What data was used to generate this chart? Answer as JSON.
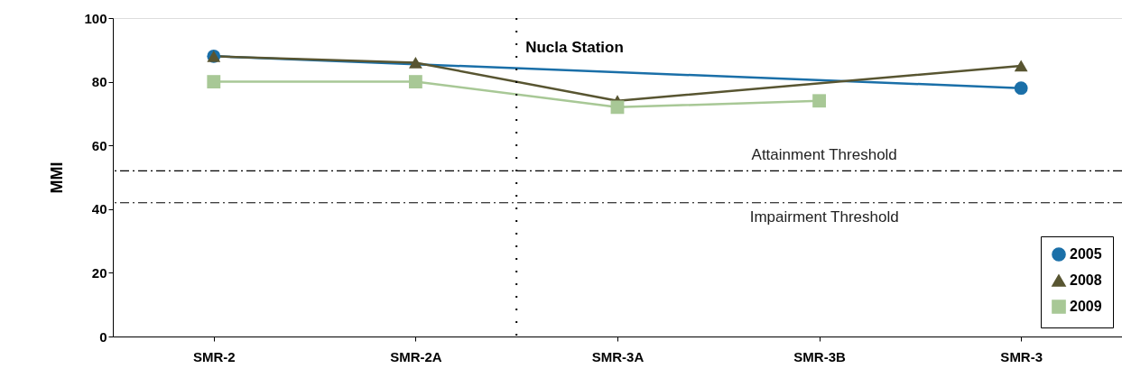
{
  "chart_data": {
    "type": "line",
    "ylabel": "MMI",
    "categories": [
      "SMR-2",
      "SMR-2A",
      "SMR-3A",
      "SMR-3B",
      "SMR-3"
    ],
    "series": [
      {
        "name": "2005",
        "color": "#1a6fa8",
        "marker": "circle",
        "values": [
          88,
          null,
          null,
          null,
          78
        ]
      },
      {
        "name": "2008",
        "color": "#585531",
        "marker": "triangle",
        "values": [
          88,
          86,
          74,
          null,
          85
        ]
      },
      {
        "name": "2009",
        "color": "#a8c896",
        "marker": "square",
        "values": [
          80,
          80,
          72,
          74,
          null
        ]
      }
    ],
    "ylim": [
      0,
      100
    ],
    "yticks": [
      0,
      20,
      40,
      60,
      80,
      100
    ],
    "ref_lines": [
      {
        "axis": "y",
        "value": 52,
        "label": "Attainment Threshold",
        "color": "#000000",
        "line_style": "dashed"
      },
      {
        "axis": "y",
        "value": 42,
        "label": "Impairment Threshold",
        "color": "#000000",
        "line_style": "dashed"
      }
    ],
    "annotations": [
      "Nucla Station"
    ],
    "grid": false,
    "legend": "bottom right",
    "line_style": "solid"
  }
}
